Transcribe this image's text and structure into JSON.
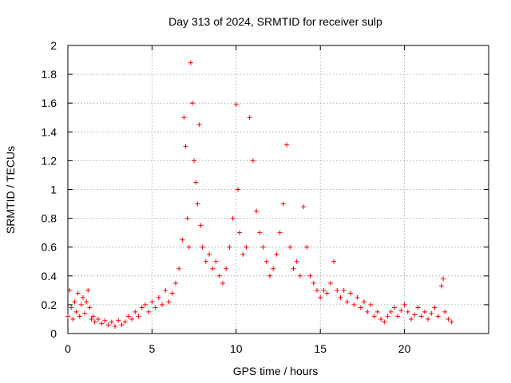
{
  "chart_data": {
    "type": "scatter",
    "title": "Day 313 of 2024, SRMTID for receiver sulp",
    "xlabel": "GPS time / hours",
    "ylabel": "SRMTID / TECUs",
    "xlim": [
      0,
      25
    ],
    "ylim": [
      0,
      2
    ],
    "xticks": [
      0,
      5,
      10,
      15,
      20
    ],
    "yticks": [
      0,
      0.2,
      0.4,
      0.6,
      0.8,
      1,
      1.2,
      1.4,
      1.6,
      1.8,
      2
    ],
    "xtick_labels": [
      "0",
      "5",
      "10",
      "15",
      "20"
    ],
    "ytick_labels": [
      "0",
      "0.2",
      "0.4",
      "0.6",
      "0.8",
      "1",
      "1.2",
      "1.4",
      "1.6",
      "1.8",
      "2"
    ],
    "grid": true,
    "marker": "+",
    "color": "#ff0000",
    "series": [
      {
        "name": "SRMTID",
        "points": [
          [
            0.0,
            0.12
          ],
          [
            0.1,
            0.3
          ],
          [
            0.2,
            0.18
          ],
          [
            0.3,
            0.1
          ],
          [
            0.4,
            0.22
          ],
          [
            0.5,
            0.15
          ],
          [
            0.6,
            0.28
          ],
          [
            0.7,
            0.12
          ],
          [
            0.8,
            0.2
          ],
          [
            0.9,
            0.25
          ],
          [
            1.0,
            0.14
          ],
          [
            1.1,
            0.22
          ],
          [
            1.2,
            0.3
          ],
          [
            1.3,
            0.18
          ],
          [
            1.4,
            0.1
          ],
          [
            1.5,
            0.12
          ],
          [
            1.6,
            0.08
          ],
          [
            1.8,
            0.1
          ],
          [
            2.0,
            0.07
          ],
          [
            2.2,
            0.09
          ],
          [
            2.4,
            0.06
          ],
          [
            2.6,
            0.08
          ],
          [
            2.8,
            0.05
          ],
          [
            3.0,
            0.09
          ],
          [
            3.2,
            0.06
          ],
          [
            3.4,
            0.08
          ],
          [
            3.6,
            0.12
          ],
          [
            3.8,
            0.1
          ],
          [
            4.0,
            0.15
          ],
          [
            4.2,
            0.12
          ],
          [
            4.4,
            0.18
          ],
          [
            4.6,
            0.2
          ],
          [
            4.8,
            0.15
          ],
          [
            5.0,
            0.22
          ],
          [
            5.2,
            0.18
          ],
          [
            5.4,
            0.25
          ],
          [
            5.6,
            0.2
          ],
          [
            5.8,
            0.3
          ],
          [
            6.0,
            0.22
          ],
          [
            6.2,
            0.28
          ],
          [
            6.4,
            0.35
          ],
          [
            6.6,
            0.45
          ],
          [
            6.8,
            0.65
          ],
          [
            6.9,
            1.5
          ],
          [
            7.0,
            1.3
          ],
          [
            7.1,
            0.8
          ],
          [
            7.2,
            0.6
          ],
          [
            7.3,
            1.88
          ],
          [
            7.4,
            1.6
          ],
          [
            7.5,
            1.2
          ],
          [
            7.6,
            1.05
          ],
          [
            7.7,
            0.9
          ],
          [
            7.8,
            1.45
          ],
          [
            7.9,
            0.75
          ],
          [
            8.0,
            0.6
          ],
          [
            8.2,
            0.5
          ],
          [
            8.4,
            0.55
          ],
          [
            8.6,
            0.45
          ],
          [
            8.8,
            0.5
          ],
          [
            9.0,
            0.4
          ],
          [
            9.2,
            0.35
          ],
          [
            9.4,
            0.45
          ],
          [
            9.6,
            0.6
          ],
          [
            9.8,
            0.8
          ],
          [
            10.0,
            1.59
          ],
          [
            10.1,
            1.0
          ],
          [
            10.2,
            0.7
          ],
          [
            10.4,
            0.55
          ],
          [
            10.6,
            0.6
          ],
          [
            10.8,
            1.5
          ],
          [
            11.0,
            1.2
          ],
          [
            11.2,
            0.85
          ],
          [
            11.4,
            0.7
          ],
          [
            11.6,
            0.6
          ],
          [
            11.8,
            0.5
          ],
          [
            12.0,
            0.4
          ],
          [
            12.2,
            0.45
          ],
          [
            12.4,
            0.55
          ],
          [
            12.6,
            0.7
          ],
          [
            12.8,
            0.9
          ],
          [
            13.0,
            1.31
          ],
          [
            13.2,
            0.6
          ],
          [
            13.4,
            0.45
          ],
          [
            13.6,
            0.5
          ],
          [
            13.8,
            0.4
          ],
          [
            14.0,
            0.88
          ],
          [
            14.2,
            0.6
          ],
          [
            14.4,
            0.4
          ],
          [
            14.6,
            0.35
          ],
          [
            14.8,
            0.3
          ],
          [
            15.0,
            0.25
          ],
          [
            15.2,
            0.3
          ],
          [
            15.4,
            0.28
          ],
          [
            15.6,
            0.35
          ],
          [
            15.8,
            0.5
          ],
          [
            16.0,
            0.3
          ],
          [
            16.2,
            0.25
          ],
          [
            16.4,
            0.3
          ],
          [
            16.6,
            0.22
          ],
          [
            16.8,
            0.28
          ],
          [
            17.0,
            0.2
          ],
          [
            17.2,
            0.25
          ],
          [
            17.4,
            0.18
          ],
          [
            17.6,
            0.22
          ],
          [
            17.8,
            0.15
          ],
          [
            18.0,
            0.2
          ],
          [
            18.2,
            0.12
          ],
          [
            18.4,
            0.15
          ],
          [
            18.6,
            0.1
          ],
          [
            18.8,
            0.08
          ],
          [
            19.0,
            0.12
          ],
          [
            19.2,
            0.15
          ],
          [
            19.4,
            0.18
          ],
          [
            19.6,
            0.12
          ],
          [
            19.8,
            0.16
          ],
          [
            20.0,
            0.2
          ],
          [
            20.2,
            0.15
          ],
          [
            20.4,
            0.1
          ],
          [
            20.6,
            0.13
          ],
          [
            20.8,
            0.18
          ],
          [
            21.0,
            0.12
          ],
          [
            21.2,
            0.15
          ],
          [
            21.4,
            0.1
          ],
          [
            21.6,
            0.14
          ],
          [
            21.8,
            0.18
          ],
          [
            22.0,
            0.12
          ],
          [
            22.2,
            0.33
          ],
          [
            22.3,
            0.38
          ],
          [
            22.4,
            0.15
          ],
          [
            22.6,
            0.1
          ],
          [
            22.8,
            0.08
          ]
        ]
      }
    ]
  }
}
